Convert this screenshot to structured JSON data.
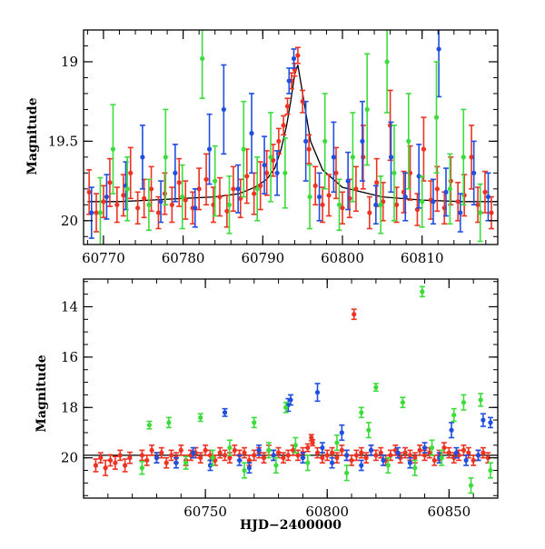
{
  "colors": {
    "blue": "#1f4fe0",
    "red": "#ee3322",
    "green": "#3ddc3d",
    "model": "#000000"
  },
  "chart_data": [
    {
      "type": "scatter",
      "xlabel": "",
      "ylabel": "Magnitude",
      "xlim": [
        60767.5,
        60819.5
      ],
      "ylim": [
        20.15,
        18.8
      ],
      "y_inverted": true,
      "xticks_labeled": [
        60770,
        60780,
        60790,
        60800,
        60810
      ],
      "xticks_minor_step": 2,
      "yticks_labeled": [
        19,
        19.5,
        20
      ],
      "yticks_minor_step": 0.1,
      "model_curve": {
        "x": [
          60768,
          60772,
          60776,
          60780,
          60784,
          60787,
          60789,
          60790.5,
          60791.5,
          60792.3,
          60793.0,
          60793.5,
          60794.0,
          60794.4,
          60795.0,
          60796.0,
          60797.5,
          60800,
          60805,
          60810,
          60815,
          60819.5
        ],
        "y": [
          19.88,
          19.88,
          19.87,
          19.86,
          19.85,
          19.83,
          19.79,
          19.74,
          19.67,
          19.55,
          19.4,
          19.25,
          19.08,
          19.02,
          19.2,
          19.5,
          19.68,
          19.79,
          19.85,
          19.87,
          19.88,
          19.88
        ]
      },
      "series": [
        {
          "color_key": "red",
          "x": [
            60768.2,
            60769.1,
            60770.0,
            60770.8,
            60771.7,
            60772.5,
            60773.4,
            60774.3,
            60775.1,
            60776.0,
            60776.9,
            60777.7,
            60778.6,
            60779.5,
            60780.3,
            60781.2,
            60782.0,
            60782.9,
            60783.8,
            60784.6,
            60785.5,
            60786.3,
            60787.2,
            60788.0,
            60788.9,
            60789.7,
            60790.5,
            60791.3,
            60792.0,
            60792.6,
            60793.1,
            60793.6,
            60794.0,
            60794.4,
            60795.0,
            60795.8,
            60796.6,
            60797.5,
            60798.3,
            60799.2,
            60800.0,
            60800.9,
            60801.7,
            60802.6,
            60803.4,
            60804.3,
            60805.1,
            60806.0,
            60806.8,
            60807.7,
            60808.5,
            60809.4,
            60810.2,
            60811.1,
            60811.9,
            60812.8,
            60813.6,
            60814.5,
            60815.3,
            60816.2,
            60817.0,
            60817.9,
            60818.7
          ],
          "y": [
            19.82,
            19.95,
            19.88,
            19.76,
            19.9,
            19.84,
            19.7,
            19.92,
            19.86,
            19.8,
            19.95,
            19.83,
            19.9,
            19.76,
            19.87,
            19.92,
            19.8,
            19.74,
            19.9,
            19.85,
            19.94,
            19.8,
            19.86,
            19.72,
            19.83,
            19.78,
            19.7,
            19.62,
            19.5,
            19.4,
            19.28,
            19.12,
            19.05,
            18.96,
            19.25,
            19.55,
            19.78,
            19.9,
            19.84,
            19.7,
            19.92,
            19.86,
            19.8,
            19.6,
            19.95,
            19.76,
            19.88,
            19.4,
            19.9,
            19.82,
            19.7,
            19.93,
            19.55,
            19.87,
            19.8,
            19.92,
            19.75,
            19.88,
            19.84,
            19.6,
            19.9,
            19.82,
            19.95
          ],
          "err": [
            0.14,
            0.12,
            0.1,
            0.15,
            0.11,
            0.13,
            0.16,
            0.1,
            0.12,
            0.14,
            0.1,
            0.13,
            0.11,
            0.15,
            0.12,
            0.1,
            0.13,
            0.16,
            0.11,
            0.12,
            0.1,
            0.14,
            0.12,
            0.17,
            0.13,
            0.15,
            0.14,
            0.1,
            0.08,
            0.06,
            0.05,
            0.05,
            0.04,
            0.05,
            0.07,
            0.09,
            0.12,
            0.11,
            0.13,
            0.16,
            0.1,
            0.12,
            0.14,
            0.2,
            0.1,
            0.15,
            0.12,
            0.22,
            0.11,
            0.13,
            0.17,
            0.1,
            0.2,
            0.12,
            0.14,
            0.1,
            0.15,
            0.12,
            0.13,
            0.2,
            0.11,
            0.13,
            0.1
          ]
        },
        {
          "color_key": "blue",
          "x": [
            60768.5,
            60770.4,
            60772.8,
            60774.9,
            60777.2,
            60779.0,
            60781.5,
            60783.3,
            60785.1,
            60786.9,
            60788.6,
            60790.2,
            60791.8,
            60793.3,
            60793.9,
            60795.4,
            60797.1,
            60798.9,
            60800.7,
            60802.5,
            60804.2,
            60806.1,
            60807.9,
            60809.6,
            60811.4,
            60812.1,
            60813.0,
            60814.8,
            60816.5,
            60818.3
          ],
          "y": [
            19.95,
            19.85,
            19.78,
            19.6,
            19.88,
            19.7,
            19.92,
            19.55,
            19.3,
            19.8,
            19.45,
            19.65,
            19.7,
            19.12,
            18.98,
            19.5,
            19.85,
            19.6,
            19.75,
            19.5,
            19.9,
            19.6,
            19.85,
            19.72,
            19.88,
            18.92,
            19.82,
            19.95,
            19.7,
            19.85
          ],
          "err": [
            0.16,
            0.14,
            0.15,
            0.2,
            0.13,
            0.18,
            0.12,
            0.22,
            0.28,
            0.15,
            0.25,
            0.18,
            0.14,
            0.08,
            0.06,
            0.25,
            0.15,
            0.22,
            0.18,
            0.25,
            0.12,
            0.22,
            0.15,
            0.2,
            0.14,
            0.3,
            0.15,
            0.12,
            0.2,
            0.15
          ]
        },
        {
          "color_key": "green",
          "x": [
            60769.6,
            60771.2,
            60773.0,
            60775.7,
            60777.8,
            60779.9,
            60782.4,
            60784.0,
            60785.8,
            60787.6,
            60789.3,
            60791.0,
            60792.8,
            60795.9,
            60797.8,
            60799.6,
            60801.3,
            60803.1,
            60804.8,
            60805.6,
            60806.5,
            60808.3,
            60810.0,
            60811.8,
            60813.5,
            60815.2,
            60817.3
          ],
          "y": [
            19.95,
            19.55,
            19.8,
            19.9,
            19.6,
            19.85,
            18.98,
            19.75,
            19.9,
            19.55,
            19.8,
            19.6,
            19.7,
            19.85,
            19.5,
            19.9,
            19.6,
            19.3,
            19.9,
            19.0,
            19.7,
            19.5,
            19.88,
            19.35,
            19.8,
            19.6,
            19.95
          ],
          "err": [
            0.22,
            0.28,
            0.2,
            0.16,
            0.3,
            0.2,
            0.25,
            0.22,
            0.18,
            0.3,
            0.2,
            0.28,
            0.22,
            0.2,
            0.3,
            0.16,
            0.28,
            0.35,
            0.18,
            0.32,
            0.3,
            0.3,
            0.16,
            0.35,
            0.22,
            0.3,
            0.18
          ]
        }
      ]
    },
    {
      "type": "scatter",
      "xlabel": "HJD−2400000",
      "ylabel": "Magnitude",
      "xlim": [
        60700,
        60870
      ],
      "ylim": [
        21.6,
        12.9
      ],
      "y_inverted": true,
      "xticks_labeled": [
        60750,
        60800,
        60850
      ],
      "xticks_minor_step": 10,
      "yticks_labeled": [
        14,
        16,
        18,
        20
      ],
      "yticks_minor_step": 0.5,
      "model_line_y": 19.9,
      "series": [
        {
          "color_key": "red",
          "x": [
            60705,
            60707,
            60709,
            60711,
            60713,
            60715,
            60717,
            60719,
            60724,
            60726,
            60728,
            60730,
            60732,
            60734,
            60736,
            60738,
            60740,
            60742,
            60744,
            60746,
            60748,
            60750,
            60752,
            60754,
            60756,
            60758,
            60760,
            60762,
            60764,
            60766,
            60768,
            60770,
            60772,
            60774,
            60776,
            60778,
            60780,
            60782,
            60784,
            60786,
            60788,
            60790,
            60792,
            60793.5,
            60794,
            60796,
            60798,
            60800,
            60802,
            60804,
            60806,
            60808,
            60810,
            60811,
            60812,
            60814,
            60816,
            60818,
            60820,
            60822,
            60824,
            60826,
            60828,
            60830,
            60832,
            60834,
            60836,
            60838,
            60840,
            60842,
            60844,
            60846,
            60848,
            60850,
            60852,
            60854,
            60856,
            60858,
            60860,
            60862,
            60864,
            60866
          ],
          "y": [
            20.3,
            20.0,
            20.4,
            20.1,
            20.2,
            19.9,
            20.3,
            20.0,
            19.9,
            20.1,
            19.7,
            20.0,
            19.8,
            20.2,
            19.9,
            20.0,
            19.7,
            20.1,
            19.9,
            19.8,
            20.0,
            19.7,
            19.9,
            20.1,
            19.8,
            19.9,
            20.0,
            19.7,
            19.9,
            19.8,
            20.1,
            19.9,
            19.8,
            20.0,
            19.7,
            19.9,
            19.8,
            20.0,
            19.9,
            19.7,
            19.9,
            19.8,
            19.6,
            19.2,
            19.4,
            19.8,
            20.0,
            19.9,
            19.8,
            20.0,
            19.7,
            19.9,
            20.1,
            14.3,
            19.9,
            19.8,
            20.0,
            19.7,
            19.9,
            19.8,
            20.1,
            19.9,
            19.7,
            20.0,
            19.8,
            19.9,
            20.0,
            19.7,
            19.9,
            19.8,
            20.1,
            19.9,
            19.6,
            19.8,
            20.0,
            19.9,
            19.7,
            19.8,
            20.1,
            19.9,
            19.8,
            20.0
          ],
          "err": [
            0.25,
            0.2,
            0.3,
            0.22,
            0.25,
            0.2,
            0.25,
            0.22,
            0.2,
            0.2,
            0.2,
            0.2,
            0.2,
            0.2,
            0.2,
            0.2,
            0.2,
            0.2,
            0.2,
            0.2,
            0.2,
            0.2,
            0.2,
            0.2,
            0.2,
            0.2,
            0.2,
            0.2,
            0.2,
            0.2,
            0.2,
            0.2,
            0.2,
            0.2,
            0.2,
            0.2,
            0.2,
            0.2,
            0.2,
            0.2,
            0.2,
            0.2,
            0.15,
            0.12,
            0.12,
            0.2,
            0.2,
            0.2,
            0.2,
            0.2,
            0.2,
            0.2,
            0.2,
            0.2,
            0.2,
            0.2,
            0.2,
            0.2,
            0.2,
            0.2,
            0.2,
            0.2,
            0.2,
            0.2,
            0.2,
            0.2,
            0.2,
            0.2,
            0.2,
            0.2,
            0.2,
            0.2,
            0.2,
            0.2,
            0.2,
            0.2,
            0.2,
            0.2,
            0.2,
            0.2,
            0.2,
            0.2
          ]
        },
        {
          "color_key": "blue",
          "x": [
            60730,
            60738,
            60745,
            60752,
            60758,
            60764,
            60768,
            60772,
            60778,
            60784,
            60785,
            60790,
            60796,
            60798,
            60802,
            60806,
            60808,
            60814,
            60818,
            60823,
            60829,
            60834,
            60840,
            60846,
            60851,
            60853,
            60857,
            60862,
            60864,
            60867
          ],
          "y": [
            20.0,
            20.2,
            19.8,
            20.3,
            18.2,
            20.1,
            20.4,
            19.7,
            19.9,
            17.9,
            17.7,
            20.0,
            17.4,
            19.6,
            20.2,
            19.0,
            19.9,
            20.3,
            19.7,
            20.1,
            19.8,
            20.2,
            19.6,
            20.0,
            18.9,
            19.8,
            20.1,
            19.9,
            18.5,
            18.6
          ],
          "err": [
            0.2,
            0.2,
            0.2,
            0.2,
            0.15,
            0.2,
            0.2,
            0.2,
            0.2,
            0.25,
            0.2,
            0.2,
            0.35,
            0.2,
            0.2,
            0.3,
            0.2,
            0.2,
            0.2,
            0.2,
            0.2,
            0.2,
            0.2,
            0.2,
            0.3,
            0.2,
            0.2,
            0.2,
            0.25,
            0.2
          ]
        },
        {
          "color_key": "green",
          "x": [
            60724,
            60727,
            60735,
            60742,
            60748,
            60753,
            60760,
            60766,
            60770,
            60776,
            60779,
            60783,
            60787,
            60792,
            60804,
            60808,
            60814,
            60817,
            60820,
            60825,
            60831,
            60836,
            60839,
            60843,
            60847,
            60852,
            60856,
            60859,
            60863,
            60867
          ],
          "y": [
            20.4,
            18.7,
            18.6,
            20.2,
            18.4,
            20.0,
            19.6,
            20.5,
            18.6,
            19.7,
            20.3,
            18.0,
            19.5,
            20.2,
            19.4,
            20.6,
            18.2,
            18.9,
            17.2,
            20.3,
            17.8,
            20.4,
            13.4,
            19.6,
            20.0,
            18.3,
            17.8,
            21.1,
            17.7,
            20.5
          ],
          "err": [
            0.25,
            0.15,
            0.2,
            0.25,
            0.15,
            0.3,
            0.3,
            0.3,
            0.2,
            0.3,
            0.3,
            0.2,
            0.3,
            0.3,
            0.3,
            0.3,
            0.2,
            0.3,
            0.15,
            0.3,
            0.2,
            0.3,
            0.2,
            0.3,
            0.3,
            0.25,
            0.3,
            0.3,
            0.25,
            0.3
          ]
        }
      ]
    }
  ]
}
